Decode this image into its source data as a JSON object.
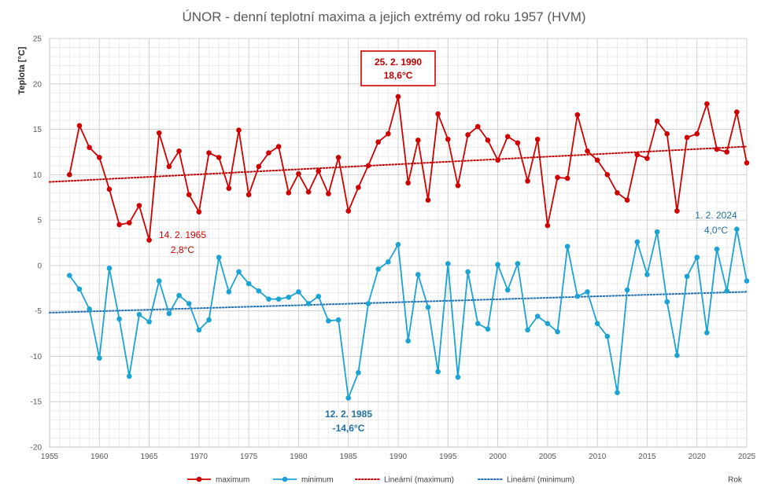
{
  "chart_data": {
    "type": "line",
    "title": "ÚNOR - denní teplotní maxima a jejich extrémy od roku 1957 (HVM)",
    "ylabel": "Teplota [°C]",
    "xlabel": "Rok",
    "xlim": [
      1955,
      2025
    ],
    "ylim": [
      -20,
      25
    ],
    "xticks": [
      1955,
      1960,
      1965,
      1970,
      1975,
      1980,
      1985,
      1990,
      1995,
      2000,
      2005,
      2010,
      2015,
      2020,
      2025
    ],
    "yticks": [
      -20,
      -15,
      -10,
      -5,
      0,
      5,
      10,
      15,
      20,
      25
    ],
    "grid": true,
    "legend_position": "bottom",
    "colors": {
      "maximum": "#d00000",
      "minimum": "#1aa3d4",
      "trend_max": "#c00000",
      "trend_min": "#1f6fb2"
    },
    "x": [
      1957,
      1958,
      1959,
      1960,
      1961,
      1962,
      1963,
      1964,
      1965,
      1966,
      1967,
      1968,
      1969,
      1970,
      1971,
      1972,
      1973,
      1974,
      1975,
      1976,
      1977,
      1978,
      1979,
      1980,
      1981,
      1982,
      1983,
      1984,
      1985,
      1986,
      1987,
      1988,
      1989,
      1990,
      1991,
      1992,
      1993,
      1994,
      1995,
      1996,
      1997,
      1998,
      1999,
      2000,
      2001,
      2002,
      2003,
      2004,
      2005,
      2006,
      2007,
      2008,
      2009,
      2010,
      2011,
      2012,
      2013,
      2014,
      2015,
      2016,
      2017,
      2018,
      2019,
      2020,
      2021,
      2022,
      2023,
      2024,
      2025
    ],
    "series": [
      {
        "name": "maximum",
        "values": [
          10.0,
          15.4,
          13.0,
          11.9,
          8.4,
          4.5,
          4.7,
          6.6,
          2.8,
          14.6,
          10.9,
          12.6,
          7.8,
          5.9,
          12.4,
          11.9,
          8.5,
          14.9,
          7.8,
          10.9,
          12.4,
          13.1,
          8.0,
          10.1,
          8.1,
          10.4,
          7.9,
          11.9,
          6.0,
          8.6,
          11.0,
          13.6,
          14.5,
          18.6,
          9.1,
          13.8,
          7.2,
          16.7,
          13.9,
          8.8,
          14.4,
          15.3,
          13.8,
          11.6,
          14.2,
          13.5,
          9.3,
          13.9,
          4.4,
          9.7,
          9.6,
          16.6,
          12.6,
          11.6,
          10.0,
          8.0,
          7.2,
          12.2,
          11.8,
          15.9,
          14.5,
          6.0,
          14.1,
          14.5,
          17.8,
          12.8,
          12.5,
          16.9,
          11.3
        ]
      },
      {
        "name": "minimum",
        "values": [
          -1.1,
          -2.6,
          -4.8,
          -10.2,
          -0.3,
          -5.9,
          -12.2,
          -5.4,
          -6.2,
          -1.7,
          -5.3,
          -3.3,
          -4.2,
          -7.1,
          -6.0,
          0.9,
          -2.9,
          -0.7,
          -2.0,
          -2.8,
          -3.7,
          -3.7,
          -3.5,
          -2.9,
          -4.2,
          -3.4,
          -6.1,
          -6.0,
          -14.6,
          -11.8,
          -4.2,
          -0.4,
          0.4,
          2.3,
          -8.3,
          -1.0,
          -4.6,
          -11.7,
          0.2,
          -12.3,
          -0.7,
          -6.4,
          -7.0,
          0.1,
          -2.7,
          0.2,
          -7.1,
          -5.6,
          -6.4,
          -7.3,
          2.1,
          -3.4,
          -2.9,
          -6.4,
          -7.8,
          -14.0,
          -2.7,
          2.6,
          -1.0,
          3.7,
          -4.0,
          -9.9,
          -1.2,
          0.9,
          -7.4,
          1.8,
          -2.8,
          4.0,
          -1.7
        ]
      }
    ],
    "trendlines": [
      {
        "name": "Lineární (maximum)",
        "x": [
          1955,
          2025
        ],
        "values": [
          9.2,
          13.1
        ]
      },
      {
        "name": "Lineární (minimum)",
        "x": [
          1955,
          2025
        ],
        "values": [
          -5.2,
          -2.9
        ]
      }
    ],
    "legend": [
      "maximum",
      "minimum",
      "Lineární (maximum)",
      "Lineární (minimum)"
    ],
    "annotations": [
      {
        "id": "max-record",
        "date": "25. 2. 1990",
        "value": "18,6°C",
        "x": 1990,
        "y": 18.6,
        "style": "boxed"
      },
      {
        "id": "max-low",
        "date": "14. 2. 1965",
        "value": "2,8°C",
        "x": 1965,
        "y": 2.8
      },
      {
        "id": "min-record",
        "date": "12. 2. 1985",
        "value": "-14,6°C",
        "x": 1985,
        "y": -14.6
      },
      {
        "id": "min-high",
        "date": "1. 2. 2024",
        "value": "4,0°C",
        "x": 2024,
        "y": 4.0
      }
    ]
  }
}
